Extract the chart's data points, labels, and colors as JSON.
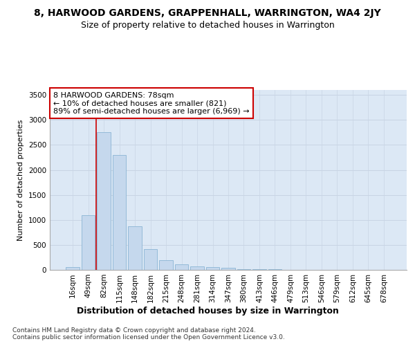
{
  "title": "8, HARWOOD GARDENS, GRAPPENHALL, WARRINGTON, WA4 2JY",
  "subtitle": "Size of property relative to detached houses in Warrington",
  "xlabel": "Distribution of detached houses by size in Warrington",
  "ylabel": "Number of detached properties",
  "categories": [
    "16sqm",
    "49sqm",
    "82sqm",
    "115sqm",
    "148sqm",
    "182sqm",
    "215sqm",
    "248sqm",
    "281sqm",
    "314sqm",
    "347sqm",
    "380sqm",
    "413sqm",
    "446sqm",
    "479sqm",
    "513sqm",
    "546sqm",
    "579sqm",
    "612sqm",
    "645sqm",
    "678sqm"
  ],
  "values": [
    50,
    1100,
    2750,
    2300,
    870,
    410,
    200,
    105,
    75,
    55,
    35,
    20,
    15,
    10,
    5,
    3,
    2,
    2,
    1,
    1,
    0
  ],
  "bar_color": "#c5d8ed",
  "bar_edgecolor": "#8ab4d4",
  "grid_color": "#c8d4e4",
  "axes_facecolor": "#dce8f5",
  "fig_facecolor": "#ffffff",
  "red_line_x": 1.5,
  "annotation_line1": "8 HARWOOD GARDENS: 78sqm",
  "annotation_line2": "← 10% of detached houses are smaller (821)",
  "annotation_line3": "89% of semi-detached houses are larger (6,969) →",
  "annotation_box_color": "#ffffff",
  "annotation_box_edgecolor": "#cc0000",
  "ylim": [
    0,
    3600
  ],
  "yticks": [
    0,
    500,
    1000,
    1500,
    2000,
    2500,
    3000,
    3500
  ],
  "footnote1": "Contains HM Land Registry data © Crown copyright and database right 2024.",
  "footnote2": "Contains public sector information licensed under the Open Government Licence v3.0.",
  "title_fontsize": 10,
  "subtitle_fontsize": 9,
  "xlabel_fontsize": 9,
  "ylabel_fontsize": 8,
  "tick_fontsize": 7.5,
  "annotation_fontsize": 8,
  "footnote_fontsize": 6.5
}
